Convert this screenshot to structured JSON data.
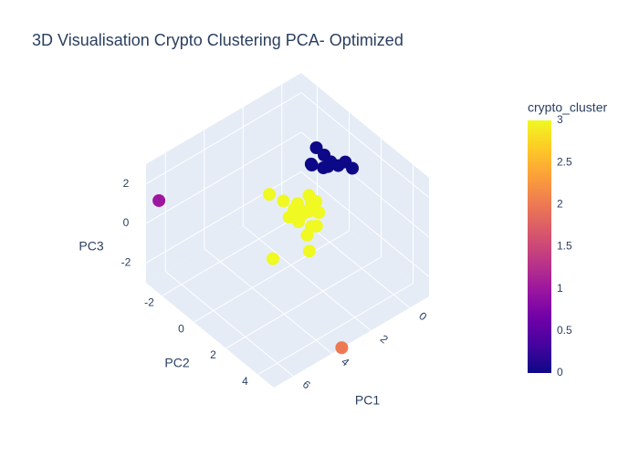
{
  "chart_data": {
    "type": "scatter3d",
    "title": "3D Visualisation Crypto Clustering PCA- Optimized",
    "xlabel": "PC1",
    "ylabel": "PC2",
    "zlabel": "PC3",
    "xlim": [
      -1,
      7
    ],
    "xticks": [
      0,
      2,
      4,
      6
    ],
    "ylim": [
      -3,
      5
    ],
    "yticks": [
      -2,
      0,
      2,
      4
    ],
    "zlim": [
      -3,
      3
    ],
    "zticks": [
      -2,
      0,
      2
    ],
    "colorbar_title": "crypto_cluster",
    "colorlim": [
      0,
      3
    ],
    "colorticks": [
      0,
      0.5,
      1,
      1.5,
      2,
      2.5,
      3
    ],
    "colorscale": [
      "#0d0887",
      "#46039f",
      "#7201a8",
      "#9c179e",
      "#bd3786",
      "#d8576b",
      "#ed7953",
      "#fb9f3a",
      "#fdca26",
      "#f0f921"
    ],
    "pane_color": "#e5ecf6",
    "grid_color": "#ffffff",
    "series": [
      {
        "x": [
          -0.2,
          0,
          -0.6,
          0.3,
          -1.0,
          -0.4,
          0.1,
          -0.8,
          -0.3,
          0.2,
          0.6,
          0.8,
          1.0,
          0.4,
          0.9,
          0.5,
          1.2,
          0.7,
          1.1,
          0.3,
          0.8,
          0.6,
          1.4,
          0.2,
          1.0,
          1.6,
          1.3,
          2.6,
          1.8,
          6.5,
          3.5
        ],
        "y": [
          -0.6,
          -0.4,
          -0.2,
          -0.8,
          0.2,
          -0.6,
          -1.0,
          0,
          -0.3,
          -0.6,
          -0.6,
          -0.4,
          -0.8,
          -0.2,
          -1.0,
          -0.7,
          -0.5,
          -0.3,
          -0.9,
          -0.5,
          -0.8,
          -0.1,
          -1.2,
          -0.9,
          -0.2,
          -0.6,
          0.3,
          -0.4,
          -1.6,
          -2.8,
          5.0
        ],
        "z": [
          0.9,
          0.5,
          0.4,
          0.6,
          0.3,
          0.2,
          0.3,
          0.6,
          0.7,
          1.5,
          -1.5,
          -1.2,
          -1.0,
          -1.4,
          -1.8,
          -0.8,
          -1.6,
          -2.0,
          -1.3,
          -1.1,
          -1.7,
          -1.9,
          -0.9,
          -1.5,
          -2.2,
          -1.2,
          -2.5,
          -2.6,
          -0.6,
          1.0,
          -3.0
        ],
        "color": [
          0,
          0,
          0,
          0,
          0,
          0,
          0,
          0,
          0,
          0,
          3,
          3,
          3,
          3,
          3,
          3,
          3,
          3,
          3,
          3,
          3,
          3,
          3,
          3,
          3,
          3,
          3,
          3,
          3,
          1,
          2
        ]
      }
    ]
  }
}
